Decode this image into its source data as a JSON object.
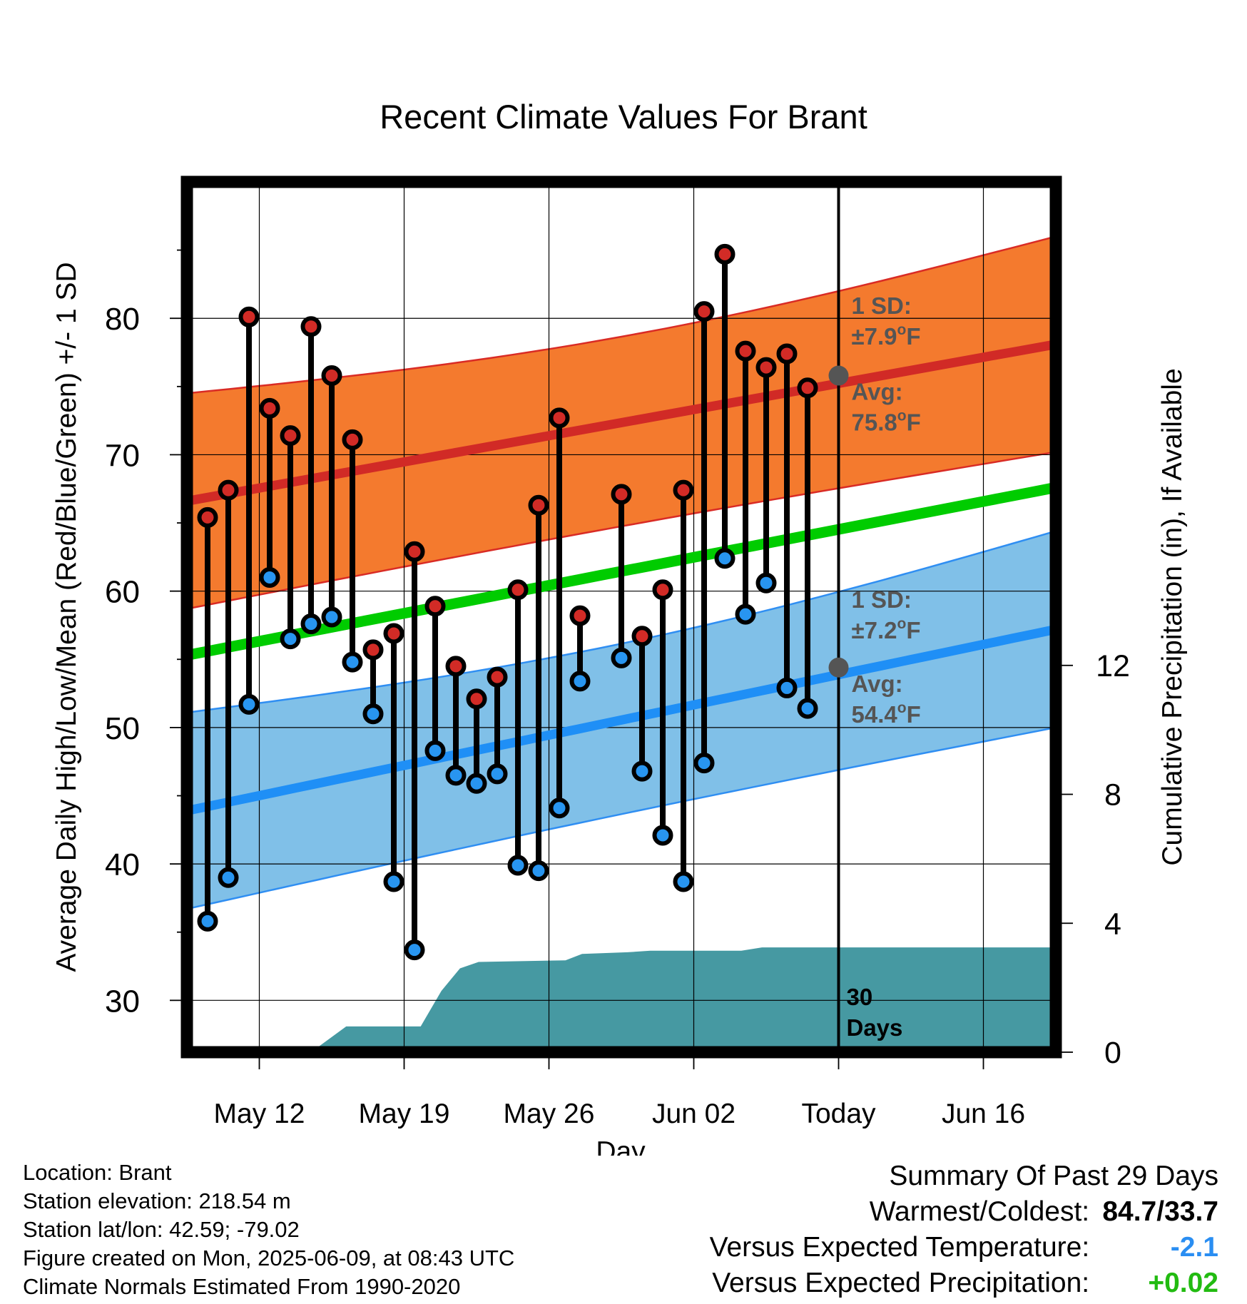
{
  "chart_data": {
    "type": "line",
    "title": "Recent Climate Values For Brant",
    "xlabel": "Day",
    "ylabel": "Average Daily High/Low/Mean (Red/Blue/Green) +/- 1 SD",
    "y2label": "Cumulative Precipitation (in), If Available",
    "x_tick_labels": [
      "May 12",
      "May 19",
      "May 26",
      "Jun 02",
      "Today",
      "Jun 16"
    ],
    "x_tick_days": [
      3,
      10,
      17,
      24,
      31,
      38
    ],
    "xlim_days": [
      -0.5,
      41.5
    ],
    "ylim": [
      26.2,
      90
    ],
    "y_ticks": [
      30,
      40,
      50,
      60,
      70,
      80
    ],
    "y2lim": [
      0,
      27
    ],
    "y2_ticks": [
      0,
      4,
      8,
      12
    ],
    "first_day": "May 09",
    "today_day": 31,
    "daily_high": [
      65.4,
      67.4,
      80.1,
      73.4,
      71.4,
      79.4,
      75.8,
      71.1,
      55.7,
      56.9,
      62.9,
      58.9,
      54.5,
      52.1,
      53.7,
      60.1,
      66.3,
      72.7,
      58.2,
      null,
      67.1,
      56.7,
      60.1,
      67.4,
      80.5,
      84.7,
      77.6,
      76.4,
      77.4,
      74.9
    ],
    "daily_low": [
      35.8,
      39.0,
      51.7,
      61.0,
      56.5,
      57.6,
      58.1,
      54.8,
      51.0,
      38.7,
      33.7,
      48.3,
      46.5,
      45.9,
      46.6,
      39.9,
      39.5,
      44.1,
      53.4,
      null,
      55.1,
      46.8,
      42.1,
      38.7,
      47.4,
      62.4,
      58.3,
      60.6,
      52.9,
      51.4
    ],
    "normal_high": {
      "start": 66.6,
      "end": 78.1
    },
    "normal_low": {
      "start": 43.9,
      "end": 57.2
    },
    "normal_mean": {
      "start": 55.3,
      "end": 67.6
    },
    "high_sd": 7.9,
    "low_sd": 7.2,
    "cumulative_precip": [
      {
        "day": 5.5,
        "value": 0.0
      },
      {
        "day": 7.2,
        "value": 0.8
      },
      {
        "day": 10.8,
        "value": 0.8
      },
      {
        "day": 11.8,
        "value": 1.9
      },
      {
        "day": 12.7,
        "value": 2.6
      },
      {
        "day": 13.6,
        "value": 2.8
      },
      {
        "day": 17.8,
        "value": 2.85
      },
      {
        "day": 18.6,
        "value": 3.05
      },
      {
        "day": 20.8,
        "value": 3.1
      },
      {
        "day": 21.9,
        "value": 3.15
      },
      {
        "day": 26.3,
        "value": 3.15
      },
      {
        "day": 27.3,
        "value": 3.25
      },
      {
        "day": 41.5,
        "value": 3.25
      }
    ],
    "annotations": {
      "high_sd": [
        "1 SD:",
        "±7.9",
        "o",
        "F"
      ],
      "high_avg": [
        "Avg:",
        "75.8",
        "o",
        "F"
      ],
      "low_sd": [
        "1 SD:",
        "±7.2",
        "o",
        "F"
      ],
      "low_avg": [
        "Avg:",
        "54.4",
        "o",
        "F"
      ],
      "window": [
        "30",
        "Days"
      ]
    },
    "high_avg_value": 75.8,
    "low_avg_value": 54.4,
    "grid": true,
    "colors": {
      "high_band": "#f47a2e",
      "high_band_edge": "#d92b25",
      "high_line": "#d12a26",
      "low_band": "#80c0e8",
      "low_band_edge": "#2f8ef2",
      "low_line": "#1f8ff6",
      "mean_line": "#00cc00",
      "precip": "#4699a2",
      "high_dot": "#d22b26",
      "low_dot": "#2895f0",
      "annotation": "#555555",
      "today_marker": "#555555"
    }
  },
  "info": {
    "location": "Location: Brant",
    "elevation": "Station elevation: 218.54 m",
    "latlon": "Station lat/lon: 42.59; -79.02",
    "created": "Figure created on Mon, 2025-06-09, at 08:43 UTC",
    "normals": "Climate Normals Estimated From 1990-2020"
  },
  "summary": {
    "title": "Summary Of Past 29 Days",
    "warmest_label": "Warmest/Coldest:",
    "warmest_value": "84.7/33.7",
    "temp_label": "Versus Expected Temperature:",
    "temp_value": "-2.1",
    "temp_color": "#2a8ef2",
    "precip_label": "Versus Expected Precipitation:",
    "precip_value": "+0.02",
    "precip_color": "#22bb11"
  }
}
